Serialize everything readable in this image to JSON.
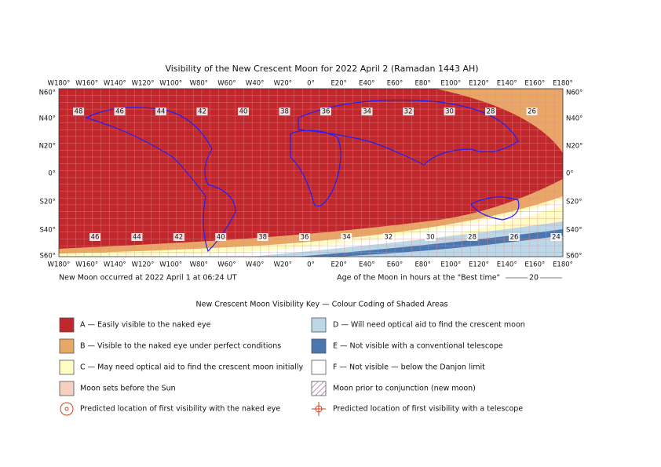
{
  "title": "Visibility of the New Crescent Moon for 2022 April 2 (Ramadan 1443 AH)",
  "longitude_labels": [
    "W180°",
    "W160°",
    "W140°",
    "W120°",
    "W100°",
    "W80°",
    "W60°",
    "W40°",
    "W20°",
    "0°",
    "E20°",
    "E40°",
    "E60°",
    "E80°",
    "E100°",
    "E120°",
    "E140°",
    "E160°",
    "E180°"
  ],
  "latitude_labels": [
    "N60°",
    "N40°",
    "N20°",
    "0°",
    "S20°",
    "S40°",
    "S60°"
  ],
  "contour_labels_north": [
    "48",
    "46",
    "44",
    "42",
    "40",
    "38",
    "36",
    "34",
    "32",
    "30",
    "28",
    "26"
  ],
  "contour_labels_south": [
    "46",
    "44",
    "42",
    "40",
    "38",
    "36",
    "34",
    "32",
    "30",
    "28",
    "26",
    "24"
  ],
  "new_moon_note": "New Moon occurred at 2022 April 1 at 06:24 UT",
  "age_note": "Age of the Moon in hours at the \"Best time\"",
  "age_sample": "20",
  "key_title": "New Crescent Moon Visibility Key — Colour Coding of Shaded Areas",
  "key_left": [
    "A — Easily visible to the naked eye",
    "B — Visible to the naked eye under perfect conditions",
    "C — May need optical aid to find the crescent moon initially",
    "Moon sets before the Sun",
    "Predicted location of first visibility with the naked eye"
  ],
  "key_right": [
    "D — Will need optical aid to find the crescent moon",
    "E — Not visible with a conventional telescope",
    "F — Not visible — below the Danjon limit",
    "Moon prior to conjunction (new moon)",
    "Predicted location of first visibility with a telescope"
  ]
}
